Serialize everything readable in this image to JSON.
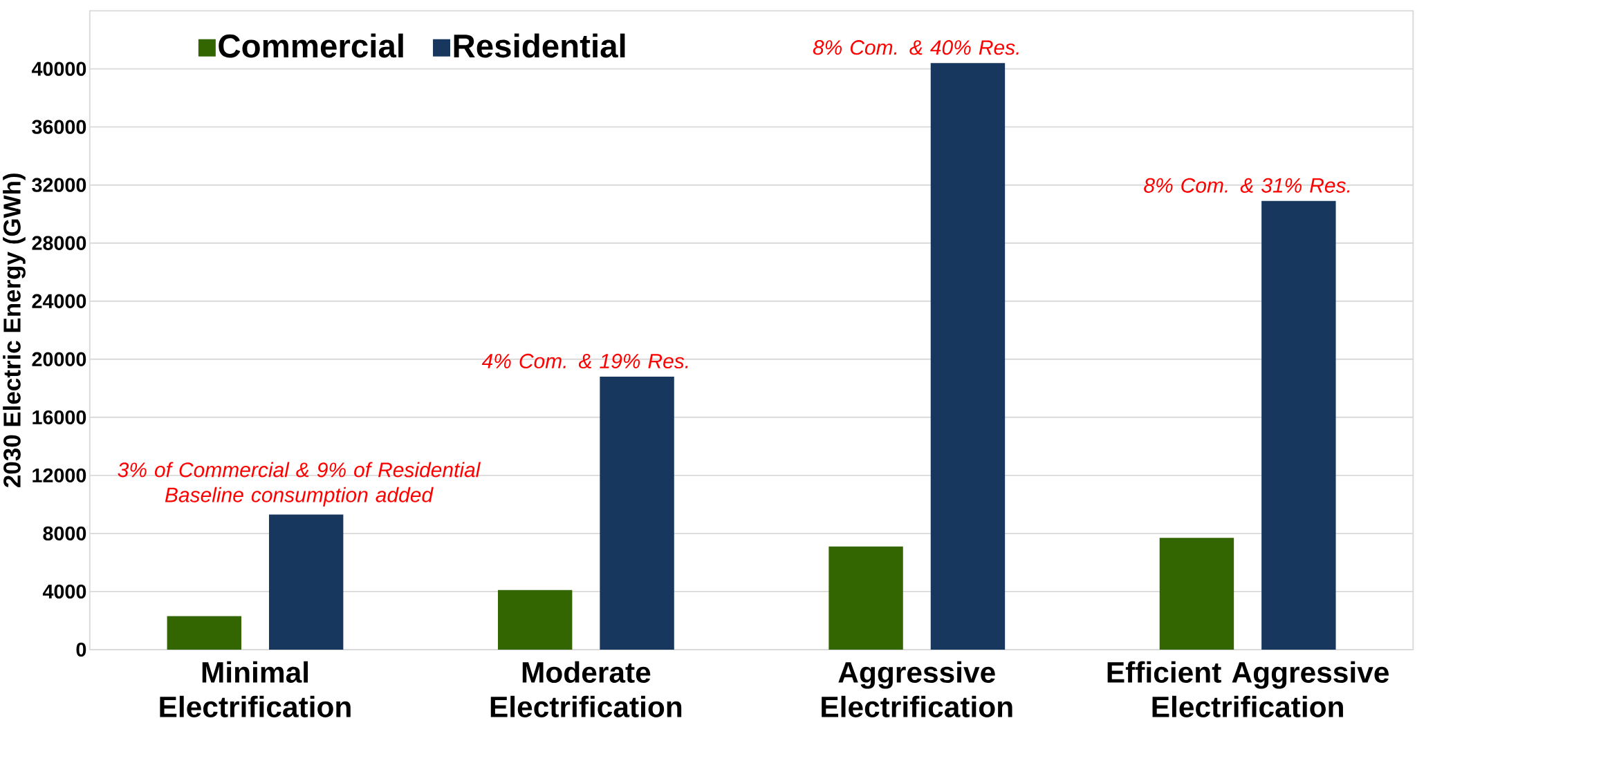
{
  "chart_data": {
    "type": "bar",
    "ylabel": "2030 Electric Energy (GWh)",
    "categories": [
      "Minimal Electrification",
      "Moderate Electrification",
      "Aggressive Electrification",
      "Efficient Aggressive Electrification"
    ],
    "series": [
      {
        "name": "Commercial",
        "color": "#336600",
        "values": [
          2300,
          4100,
          7100,
          7700
        ]
      },
      {
        "name": "Residential",
        "color": "#17375e",
        "values": [
          9300,
          18800,
          40400,
          30900
        ]
      }
    ],
    "ylim": [
      0,
      44000
    ],
    "yticks": [
      0,
      4000,
      8000,
      12000,
      16000,
      20000,
      24000,
      28000,
      32000,
      36000,
      40000
    ],
    "grid": "y",
    "legend": "top left",
    "annotations": [
      "3% of Commercial & 9% of Residential Baseline consumption added",
      "4% Com. & 19% Res.",
      "8% Com. & 40% Res.",
      "8% Com. & 31% Res."
    ]
  }
}
